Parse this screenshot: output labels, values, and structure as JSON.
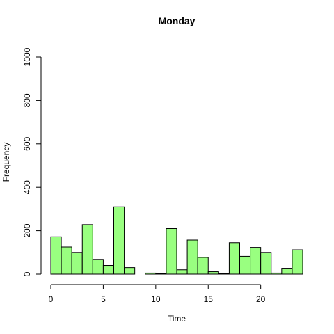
{
  "chart_data": {
    "type": "bar",
    "title": "Monday",
    "xlabel": "Time",
    "ylabel": "Frequency",
    "xlim": [
      0,
      24
    ],
    "ylim": [
      0,
      1000
    ],
    "x_ticks": [
      0,
      5,
      10,
      15,
      20
    ],
    "y_ticks": [
      0,
      200,
      400,
      600,
      800,
      1000
    ],
    "bin_width": 1,
    "bins_start": [
      0,
      1,
      2,
      3,
      4,
      5,
      6,
      7,
      8,
      9,
      10,
      11,
      12,
      13,
      14,
      15,
      16,
      17,
      18,
      19,
      20,
      21,
      22,
      23
    ],
    "values": [
      172,
      125,
      100,
      228,
      68,
      40,
      310,
      30,
      0,
      5,
      3,
      210,
      20,
      157,
      77,
      11,
      3,
      145,
      82,
      123,
      100,
      5,
      27,
      112
    ],
    "bar_color": "#99FF80",
    "grid": false
  }
}
